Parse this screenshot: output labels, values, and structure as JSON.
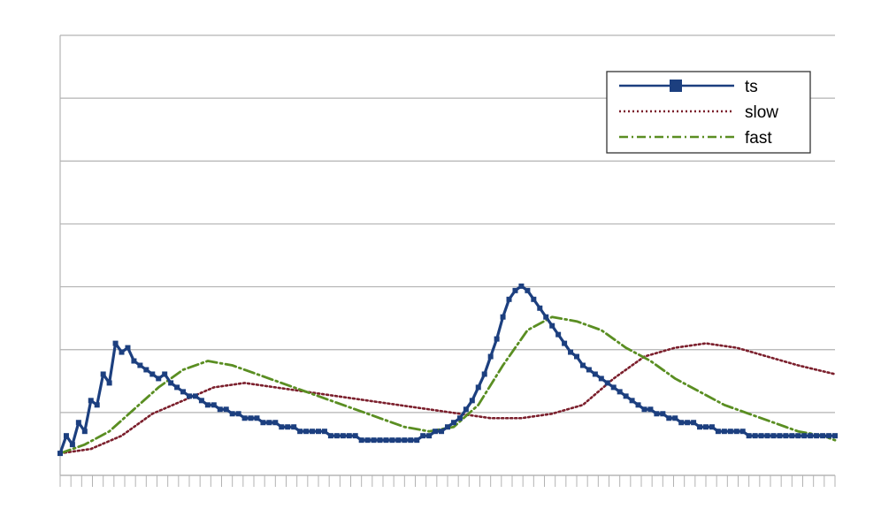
{
  "chart_data": {
    "type": "line",
    "title": "",
    "xlabel": "",
    "ylabel": "",
    "grid": true,
    "legend_position": "top-right",
    "ylim": [
      0,
      1
    ],
    "xlim": [
      0,
      126
    ],
    "colors": {
      "ts": "#1c3f7f",
      "slow": "#7b1f2c",
      "fast": "#5a8e22",
      "grid": "#b3b3b3",
      "background": "#ffffff"
    },
    "series": [
      {
        "name": "ts",
        "style": "solid-with-square-markers",
        "x": [
          0,
          1,
          2,
          3,
          4,
          5,
          6,
          7,
          8,
          9,
          10,
          11,
          12,
          13,
          14,
          15,
          16,
          17,
          18,
          19,
          20,
          21,
          22,
          23,
          24,
          25,
          26,
          27,
          28,
          29,
          30,
          31,
          32,
          33,
          34,
          35,
          36,
          37,
          38,
          39,
          40,
          41,
          42,
          43,
          44,
          45,
          46,
          47,
          48,
          49,
          50,
          51,
          52,
          53,
          54,
          55,
          56,
          57,
          58,
          59,
          60,
          61,
          62,
          63,
          64,
          65,
          66,
          67,
          68,
          69,
          70,
          71,
          72,
          73,
          74,
          75,
          76,
          77,
          78,
          79,
          80,
          81,
          82,
          83,
          84,
          85,
          86,
          87,
          88,
          89,
          90,
          91,
          92,
          93,
          94,
          95,
          96,
          97,
          98,
          99,
          100,
          101,
          102,
          103,
          104,
          105,
          106,
          107,
          108,
          109,
          110,
          111,
          112,
          113,
          114,
          115,
          116,
          117,
          118,
          119,
          120,
          121,
          122,
          123,
          124,
          125,
          126
        ],
        "values": [
          0.05,
          0.09,
          0.07,
          0.12,
          0.1,
          0.17,
          0.16,
          0.23,
          0.21,
          0.3,
          0.28,
          0.29,
          0.26,
          0.25,
          0.24,
          0.23,
          0.22,
          0.23,
          0.21,
          0.2,
          0.19,
          0.18,
          0.18,
          0.17,
          0.16,
          0.16,
          0.15,
          0.15,
          0.14,
          0.14,
          0.13,
          0.13,
          0.13,
          0.12,
          0.12,
          0.12,
          0.11,
          0.11,
          0.11,
          0.1,
          0.1,
          0.1,
          0.1,
          0.1,
          0.09,
          0.09,
          0.09,
          0.09,
          0.09,
          0.08,
          0.08,
          0.08,
          0.08,
          0.08,
          0.08,
          0.08,
          0.08,
          0.08,
          0.08,
          0.09,
          0.09,
          0.1,
          0.1,
          0.11,
          0.12,
          0.13,
          0.15,
          0.17,
          0.2,
          0.23,
          0.27,
          0.31,
          0.36,
          0.4,
          0.42,
          0.43,
          0.42,
          0.4,
          0.38,
          0.36,
          0.34,
          0.32,
          0.3,
          0.28,
          0.27,
          0.25,
          0.24,
          0.23,
          0.22,
          0.21,
          0.2,
          0.19,
          0.18,
          0.17,
          0.16,
          0.15,
          0.15,
          0.14,
          0.14,
          0.13,
          0.13,
          0.12,
          0.12,
          0.12,
          0.11,
          0.11,
          0.11,
          0.1,
          0.1,
          0.1,
          0.1,
          0.1,
          0.09,
          0.09,
          0.09,
          0.09,
          0.09,
          0.09,
          0.09,
          0.09,
          0.09,
          0.09,
          0.09,
          0.09,
          0.09,
          0.09,
          0.09
        ]
      },
      {
        "name": "slow",
        "style": "dotted",
        "x": [
          0,
          5,
          10,
          15,
          20,
          25,
          30,
          35,
          40,
          45,
          50,
          55,
          60,
          65,
          70,
          75,
          80,
          85,
          90,
          95,
          100,
          105,
          110,
          115,
          120,
          126
        ],
        "values": [
          0.05,
          0.06,
          0.09,
          0.14,
          0.17,
          0.2,
          0.21,
          0.2,
          0.19,
          0.18,
          0.17,
          0.16,
          0.15,
          0.14,
          0.13,
          0.13,
          0.14,
          0.16,
          0.22,
          0.27,
          0.29,
          0.3,
          0.29,
          0.27,
          0.25,
          0.23
        ]
      },
      {
        "name": "fast",
        "style": "dash-dot",
        "x": [
          0,
          4,
          8,
          12,
          16,
          20,
          24,
          28,
          32,
          36,
          40,
          44,
          48,
          52,
          56,
          60,
          64,
          68,
          72,
          76,
          80,
          84,
          88,
          92,
          96,
          100,
          104,
          108,
          112,
          116,
          120,
          124,
          126
        ],
        "values": [
          0.05,
          0.07,
          0.1,
          0.15,
          0.2,
          0.24,
          0.26,
          0.25,
          0.23,
          0.21,
          0.19,
          0.17,
          0.15,
          0.13,
          0.11,
          0.1,
          0.11,
          0.16,
          0.25,
          0.33,
          0.36,
          0.35,
          0.33,
          0.29,
          0.26,
          0.22,
          0.19,
          0.16,
          0.14,
          0.12,
          0.1,
          0.09,
          0.08
        ]
      }
    ]
  }
}
